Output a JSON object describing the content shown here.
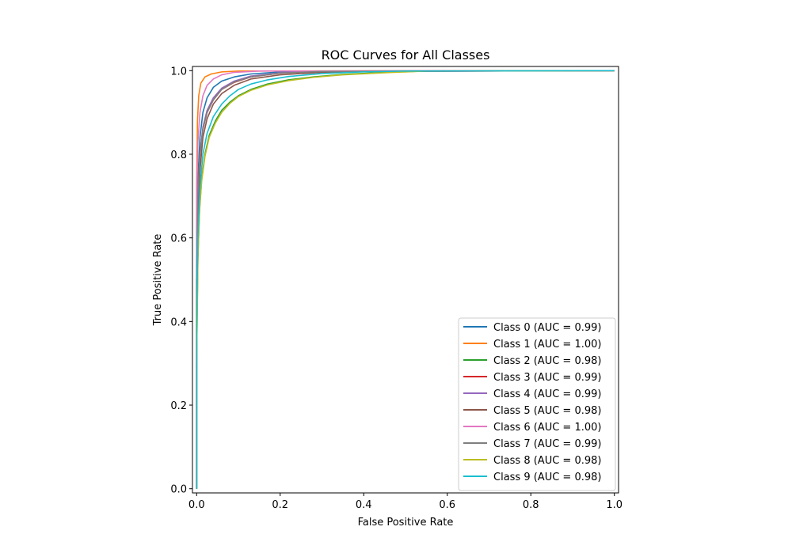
{
  "chart_data": {
    "type": "line",
    "title": "ROC Curves for All Classes",
    "xlabel": "False Positive Rate",
    "ylabel": "True Positive Rate",
    "xlim": [
      -0.01,
      1.01
    ],
    "ylim": [
      -0.01,
      1.01
    ],
    "xticks": [
      "0.0",
      "0.2",
      "0.4",
      "0.6",
      "0.8",
      "1.0"
    ],
    "yticks": [
      "0.0",
      "0.2",
      "0.4",
      "0.6",
      "0.8",
      "1.0"
    ],
    "grid": false,
    "legend_position": "lower right",
    "series": [
      {
        "name": "Class 0 (AUC = 0.99)",
        "color": "#1f77b4",
        "points": [
          [
            0,
            0
          ],
          [
            0,
            0.55
          ],
          [
            0.003,
            0.74
          ],
          [
            0.008,
            0.84
          ],
          [
            0.015,
            0.9
          ],
          [
            0.025,
            0.935
          ],
          [
            0.04,
            0.96
          ],
          [
            0.06,
            0.975
          ],
          [
            0.09,
            0.985
          ],
          [
            0.13,
            0.992
          ],
          [
            0.2,
            0.997
          ],
          [
            0.3,
            0.999
          ],
          [
            1,
            1
          ]
        ]
      },
      {
        "name": "Class 1 (AUC = 1.00)",
        "color": "#ff7f0e",
        "points": [
          [
            0,
            0
          ],
          [
            0,
            0.72
          ],
          [
            0.002,
            0.88
          ],
          [
            0.005,
            0.94
          ],
          [
            0.01,
            0.97
          ],
          [
            0.02,
            0.985
          ],
          [
            0.035,
            0.992
          ],
          [
            0.06,
            0.997
          ],
          [
            0.1,
            0.999
          ],
          [
            1,
            1
          ]
        ]
      },
      {
        "name": "Class 2 (AUC = 0.98)",
        "color": "#2ca02c",
        "points": [
          [
            0,
            0
          ],
          [
            0,
            0.3
          ],
          [
            0.003,
            0.55
          ],
          [
            0.007,
            0.67
          ],
          [
            0.012,
            0.74
          ],
          [
            0.02,
            0.8
          ],
          [
            0.03,
            0.845
          ],
          [
            0.045,
            0.88
          ],
          [
            0.06,
            0.905
          ],
          [
            0.08,
            0.925
          ],
          [
            0.1,
            0.94
          ],
          [
            0.13,
            0.955
          ],
          [
            0.17,
            0.968
          ],
          [
            0.22,
            0.978
          ],
          [
            0.28,
            0.985
          ],
          [
            0.35,
            0.991
          ],
          [
            0.45,
            0.996
          ],
          [
            0.55,
            0.999
          ],
          [
            1,
            1
          ]
        ]
      },
      {
        "name": "Class 3 (AUC = 0.99)",
        "color": "#d62728",
        "points": [
          [
            0,
            0
          ],
          [
            0,
            0.5
          ],
          [
            0.003,
            0.7
          ],
          [
            0.008,
            0.8
          ],
          [
            0.015,
            0.86
          ],
          [
            0.025,
            0.9
          ],
          [
            0.04,
            0.93
          ],
          [
            0.06,
            0.955
          ],
          [
            0.09,
            0.972
          ],
          [
            0.13,
            0.985
          ],
          [
            0.2,
            0.994
          ],
          [
            0.3,
            0.998
          ],
          [
            1,
            1
          ]
        ]
      },
      {
        "name": "Class 4 (AUC = 0.99)",
        "color": "#9467bd",
        "points": [
          [
            0,
            0
          ],
          [
            0,
            0.5
          ],
          [
            0.003,
            0.7
          ],
          [
            0.008,
            0.8
          ],
          [
            0.015,
            0.865
          ],
          [
            0.025,
            0.905
          ],
          [
            0.04,
            0.935
          ],
          [
            0.06,
            0.958
          ],
          [
            0.09,
            0.975
          ],
          [
            0.13,
            0.987
          ],
          [
            0.2,
            0.995
          ],
          [
            0.3,
            0.998
          ],
          [
            1,
            1
          ]
        ]
      },
      {
        "name": "Class 5 (AUC = 0.98)",
        "color": "#8c564b",
        "points": [
          [
            0,
            0
          ],
          [
            0,
            0.45
          ],
          [
            0.003,
            0.65
          ],
          [
            0.008,
            0.76
          ],
          [
            0.015,
            0.84
          ],
          [
            0.025,
            0.885
          ],
          [
            0.04,
            0.92
          ],
          [
            0.06,
            0.945
          ],
          [
            0.09,
            0.965
          ],
          [
            0.13,
            0.98
          ],
          [
            0.2,
            0.99
          ],
          [
            0.3,
            0.996
          ],
          [
            0.4,
            0.999
          ],
          [
            1,
            1
          ]
        ]
      },
      {
        "name": "Class 6 (AUC = 1.00)",
        "color": "#e377c2",
        "points": [
          [
            0,
            0
          ],
          [
            0,
            0.7
          ],
          [
            0.003,
            0.83
          ],
          [
            0.008,
            0.9
          ],
          [
            0.015,
            0.94
          ],
          [
            0.025,
            0.965
          ],
          [
            0.04,
            0.98
          ],
          [
            0.06,
            0.99
          ],
          [
            0.09,
            0.996
          ],
          [
            0.15,
            0.999
          ],
          [
            1,
            1
          ]
        ]
      },
      {
        "name": "Class 7 (AUC = 0.99)",
        "color": "#7f7f7f",
        "points": [
          [
            0,
            0
          ],
          [
            0,
            0.5
          ],
          [
            0.003,
            0.7
          ],
          [
            0.008,
            0.8
          ],
          [
            0.015,
            0.86
          ],
          [
            0.025,
            0.9
          ],
          [
            0.04,
            0.93
          ],
          [
            0.06,
            0.955
          ],
          [
            0.09,
            0.973
          ],
          [
            0.13,
            0.985
          ],
          [
            0.2,
            0.994
          ],
          [
            0.3,
            0.998
          ],
          [
            1,
            1
          ]
        ]
      },
      {
        "name": "Class 8 (AUC = 0.98)",
        "color": "#bcbd22",
        "points": [
          [
            0,
            0
          ],
          [
            0,
            0.3
          ],
          [
            0.003,
            0.55
          ],
          [
            0.007,
            0.665
          ],
          [
            0.012,
            0.735
          ],
          [
            0.02,
            0.795
          ],
          [
            0.03,
            0.84
          ],
          [
            0.045,
            0.875
          ],
          [
            0.06,
            0.9
          ],
          [
            0.08,
            0.922
          ],
          [
            0.1,
            0.938
          ],
          [
            0.13,
            0.953
          ],
          [
            0.17,
            0.966
          ],
          [
            0.22,
            0.976
          ],
          [
            0.28,
            0.984
          ],
          [
            0.35,
            0.99
          ],
          [
            0.45,
            0.995
          ],
          [
            0.55,
            0.999
          ],
          [
            1,
            1
          ]
        ]
      },
      {
        "name": "Class 9 (AUC = 0.98)",
        "color": "#17becf",
        "points": [
          [
            0,
            0
          ],
          [
            0,
            0.4
          ],
          [
            0.003,
            0.6
          ],
          [
            0.008,
            0.72
          ],
          [
            0.015,
            0.8
          ],
          [
            0.025,
            0.85
          ],
          [
            0.04,
            0.89
          ],
          [
            0.06,
            0.92
          ],
          [
            0.08,
            0.94
          ],
          [
            0.1,
            0.955
          ],
          [
            0.13,
            0.968
          ],
          [
            0.17,
            0.978
          ],
          [
            0.22,
            0.986
          ],
          [
            0.3,
            0.993
          ],
          [
            0.4,
            0.997
          ],
          [
            0.5,
            0.999
          ],
          [
            1,
            1
          ]
        ]
      }
    ]
  }
}
